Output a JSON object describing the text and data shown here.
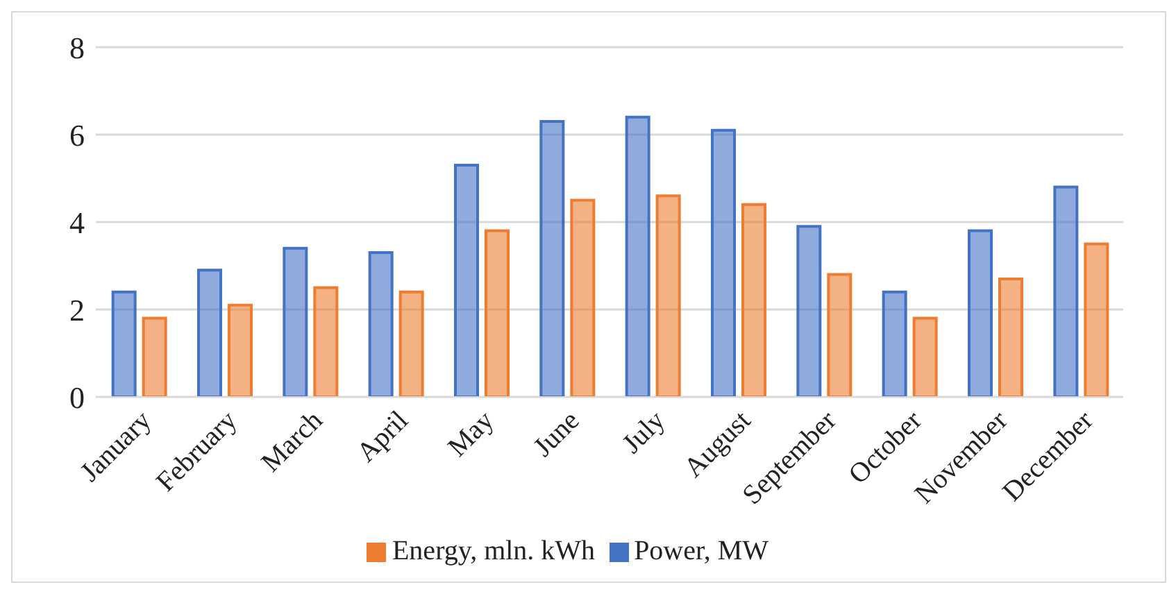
{
  "chart_data": {
    "type": "bar",
    "categories": [
      "January",
      "February",
      "March",
      "April",
      "May",
      "June",
      "July",
      "August",
      "September",
      "October",
      "November",
      "December"
    ],
    "series": [
      {
        "name": "Power, MW",
        "color": "#4472c4",
        "values": [
          2.4,
          2.9,
          3.4,
          3.3,
          5.3,
          6.3,
          6.4,
          6.1,
          3.9,
          2.4,
          3.8,
          4.8
        ]
      },
      {
        "name": "Energy, mln. kWh",
        "color": "#ed7d31",
        "values": [
          1.8,
          2.1,
          2.5,
          2.4,
          3.8,
          4.5,
          4.6,
          4.4,
          2.8,
          1.8,
          2.7,
          3.5
        ]
      }
    ],
    "ylim": [
      0,
      8
    ],
    "yticks": [
      0,
      2,
      4,
      6,
      8
    ],
    "grid": "y",
    "legend": "bottom"
  }
}
